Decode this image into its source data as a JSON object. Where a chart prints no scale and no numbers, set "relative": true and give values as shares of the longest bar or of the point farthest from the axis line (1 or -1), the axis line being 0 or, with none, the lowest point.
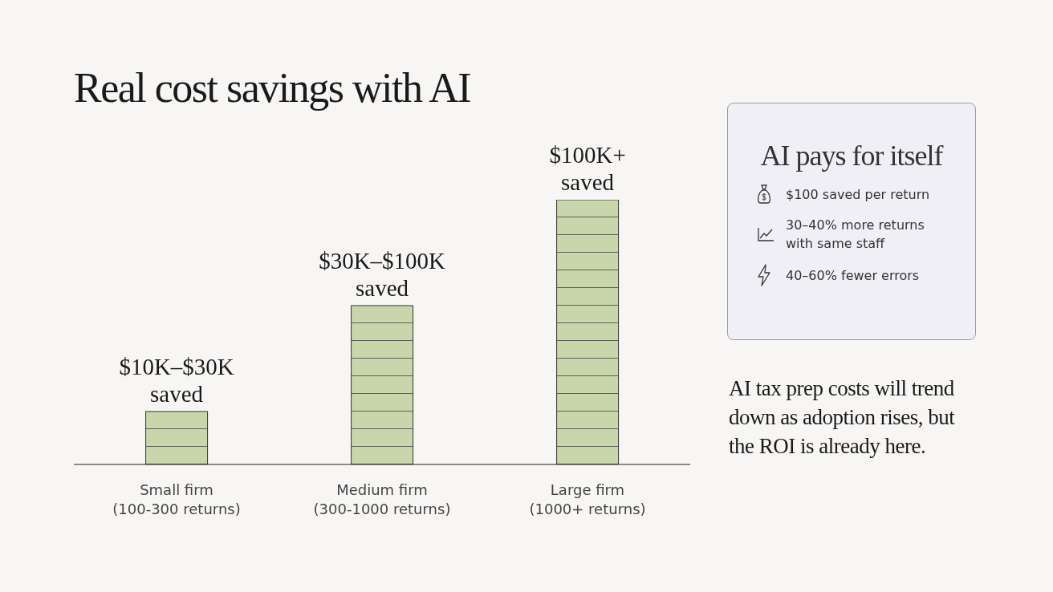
{
  "chart_data": [
    {
      "type": "bar",
      "title": "Real cost savings with AI",
      "categories": [
        "Small firm\n(100-300 returns)",
        "Medium firm\n(300-1000 returns)",
        "Large firm\n(1000+ returns)"
      ],
      "values": [
        0.2,
        0.6,
        1
      ],
      "relative": true,
      "color": "#c9d6ac",
      "annotations": [
        {
          "text": "$10K–$30K\nsaved",
          "x": "Small firm\n(100-300 returns)",
          "y": 0.2
        },
        {
          "text": "$30K–$100K\nsaved",
          "x": "Medium firm\n(300-1000 returns)",
          "y": 0.6
        },
        {
          "text": "$100K+\nsaved",
          "x": "Large firm\n(1000+ returns)",
          "y": 1
        },
        "AI tax prep costs will trend down as adoption rises, but the ROI is already here."
      ]
    },
    {
      "type": "other",
      "title": "AI pays for itself",
      "annotations": [
        "$100 saved per return",
        "30–40% more returns with same staff",
        "40–60% fewer errors"
      ]
    }
  ]
}
